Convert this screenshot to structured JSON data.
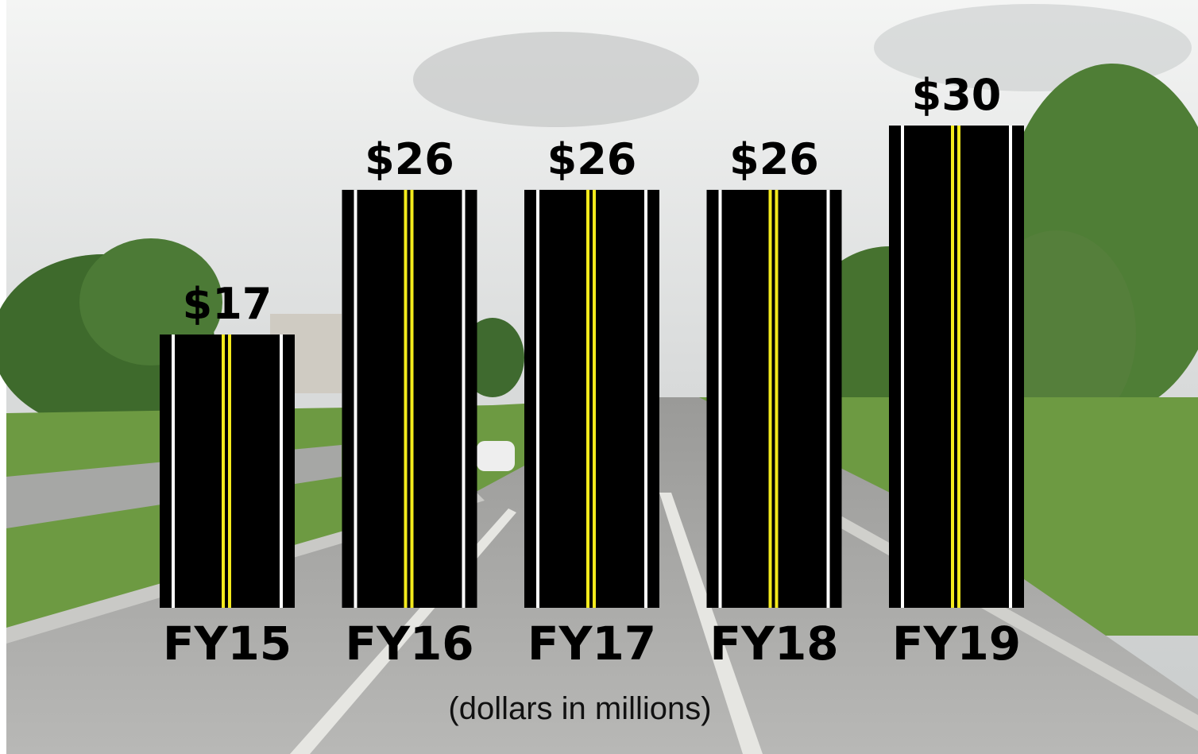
{
  "chart_data": {
    "type": "bar",
    "subtitle": "(dollars in millions)",
    "categories": [
      "FY15",
      "FY16",
      "FY17",
      "FY18",
      "FY19"
    ],
    "values": [
      17,
      26,
      26,
      26,
      30
    ],
    "value_labels": [
      "$17",
      "$26",
      "$26",
      "$26",
      "$30"
    ],
    "color": "#000000"
  }
}
